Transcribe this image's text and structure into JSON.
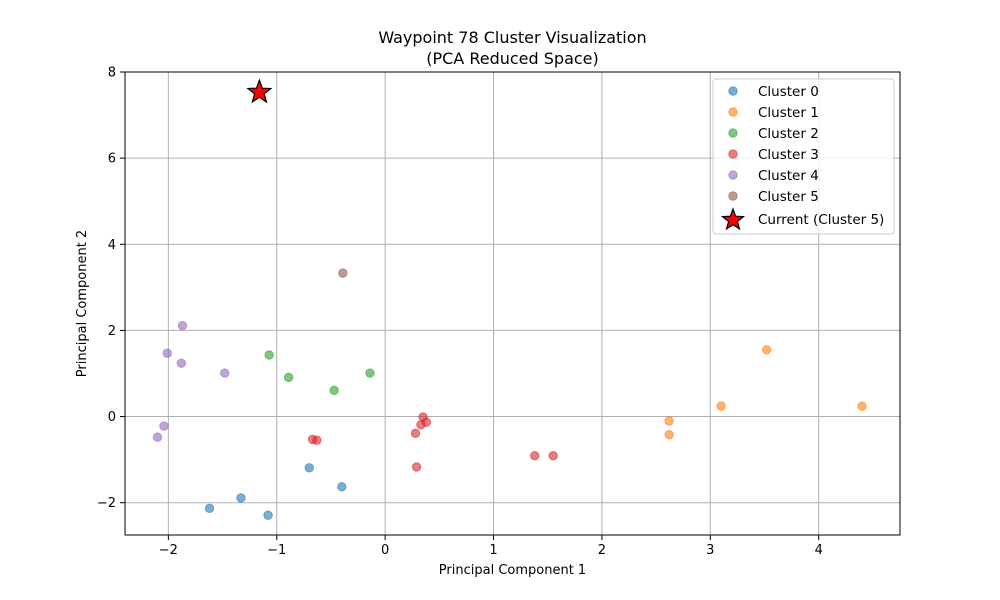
{
  "chart_data": {
    "type": "scatter",
    "title_lines": [
      "Waypoint 78 Cluster Visualization",
      "(PCA Reduced Space)"
    ],
    "xlabel": "Principal Component 1",
    "ylabel": "Principal Component 2",
    "xlim": [
      -2.4,
      4.75
    ],
    "ylim": [
      -2.75,
      8.0
    ],
    "xticks": [
      -2,
      -1,
      0,
      1,
      2,
      3,
      4
    ],
    "yticks": [
      -2,
      0,
      2,
      4,
      6,
      8
    ],
    "grid": true,
    "legend_position": "top-right",
    "series": [
      {
        "name": "Cluster 0",
        "color": "#1f77b4",
        "points": [
          [
            -0.7,
            -1.19
          ],
          [
            -0.4,
            -1.63
          ],
          [
            -1.33,
            -1.89
          ],
          [
            -1.62,
            -2.13
          ],
          [
            -1.08,
            -2.29
          ]
        ]
      },
      {
        "name": "Cluster 1",
        "color": "#ff7f0e",
        "points": [
          [
            3.52,
            1.55
          ],
          [
            3.1,
            0.24
          ],
          [
            4.4,
            0.24
          ],
          [
            2.62,
            -0.1
          ],
          [
            2.62,
            -0.42
          ]
        ]
      },
      {
        "name": "Cluster 2",
        "color": "#2ca02c",
        "points": [
          [
            -1.07,
            1.43
          ],
          [
            -0.89,
            0.91
          ],
          [
            -0.14,
            1.01
          ],
          [
            -0.47,
            0.61
          ]
        ]
      },
      {
        "name": "Cluster 3",
        "color": "#d62728",
        "points": [
          [
            0.35,
            -0.01
          ],
          [
            0.38,
            -0.13
          ],
          [
            0.33,
            -0.19
          ],
          [
            0.28,
            -0.39
          ],
          [
            -0.67,
            -0.53
          ],
          [
            -0.63,
            -0.55
          ],
          [
            0.29,
            -1.17
          ],
          [
            1.38,
            -0.91
          ],
          [
            1.55,
            -0.91
          ]
        ]
      },
      {
        "name": "Cluster 4",
        "color": "#9467bd",
        "points": [
          [
            -1.87,
            2.11
          ],
          [
            -2.01,
            1.47
          ],
          [
            -1.88,
            1.24
          ],
          [
            -1.48,
            1.01
          ],
          [
            -2.04,
            -0.22
          ],
          [
            -2.1,
            -0.48
          ]
        ]
      },
      {
        "name": "Cluster 5",
        "color": "#8c564b",
        "points": [
          [
            -0.39,
            3.33
          ]
        ]
      }
    ],
    "current": {
      "name": "Current (Cluster 5)",
      "color": "#ff0000",
      "edge_color": "#000000",
      "point": [
        -1.16,
        7.53
      ]
    }
  }
}
